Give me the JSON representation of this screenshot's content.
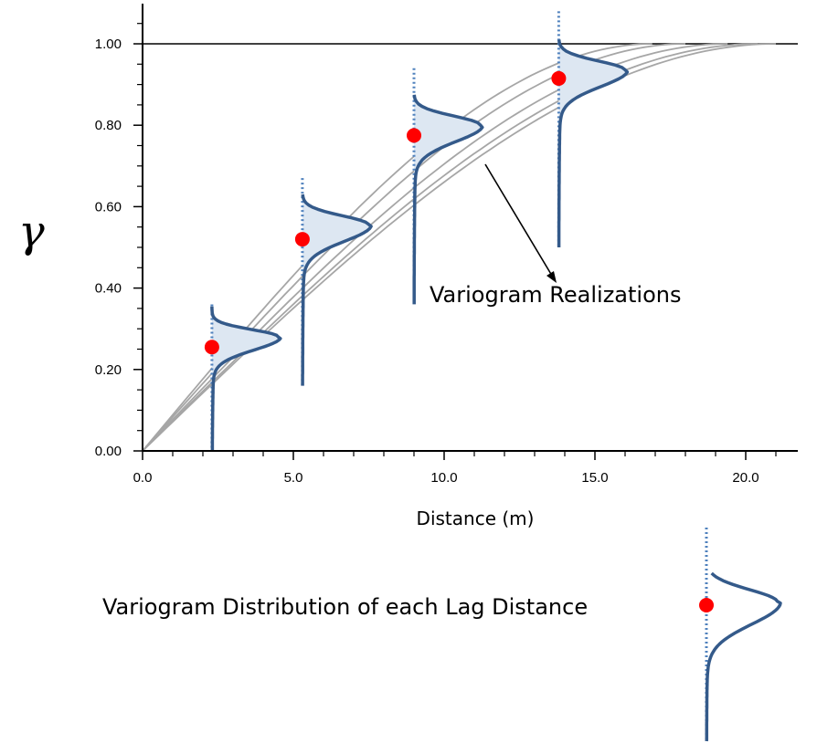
{
  "chart_data": {
    "type": "line",
    "title": "",
    "xlabel": "Distance (m)",
    "ylabel": "γ",
    "xlim": [
      0,
      22
    ],
    "ylim": [
      0,
      1.1
    ],
    "x_ticks": [
      "0.0",
      "5.0",
      "10.0",
      "15.0",
      "20.0"
    ],
    "y_ticks": [
      "0.00",
      "0.20",
      "0.40",
      "0.60",
      "0.80",
      "1.00"
    ],
    "sill": 1.0,
    "realization_ranges": [
      16.9,
      18.0,
      19.4,
      20.4,
      21.0
    ],
    "lags": [
      {
        "x": 2.3,
        "mean": 0.255,
        "mode": 0.28,
        "spread": 0.02,
        "tail_bottom": 0.0,
        "line_top": 0.36
      },
      {
        "x": 5.3,
        "mean": 0.52,
        "mode": 0.555,
        "spread": 0.025,
        "tail_bottom": 0.16,
        "line_top": 0.67
      },
      {
        "x": 9.0,
        "mean": 0.775,
        "mode": 0.8,
        "spread": 0.025,
        "tail_bottom": 0.36,
        "line_top": 0.94
      },
      {
        "x": 13.8,
        "mean": 0.915,
        "mode": 0.935,
        "spread": 0.025,
        "tail_bottom": 0.5,
        "line_top": 1.08
      }
    ],
    "annotations": {
      "realizations": "Variogram Realizations",
      "legend_text": "Variogram Distribution of each Lag Distance"
    },
    "colors": {
      "realization": "#a6a6a6",
      "distribution": "#345a8a",
      "distribution_fill": "#dde7f2",
      "dotted": "#4f81bd",
      "point": "#ff0000"
    }
  }
}
